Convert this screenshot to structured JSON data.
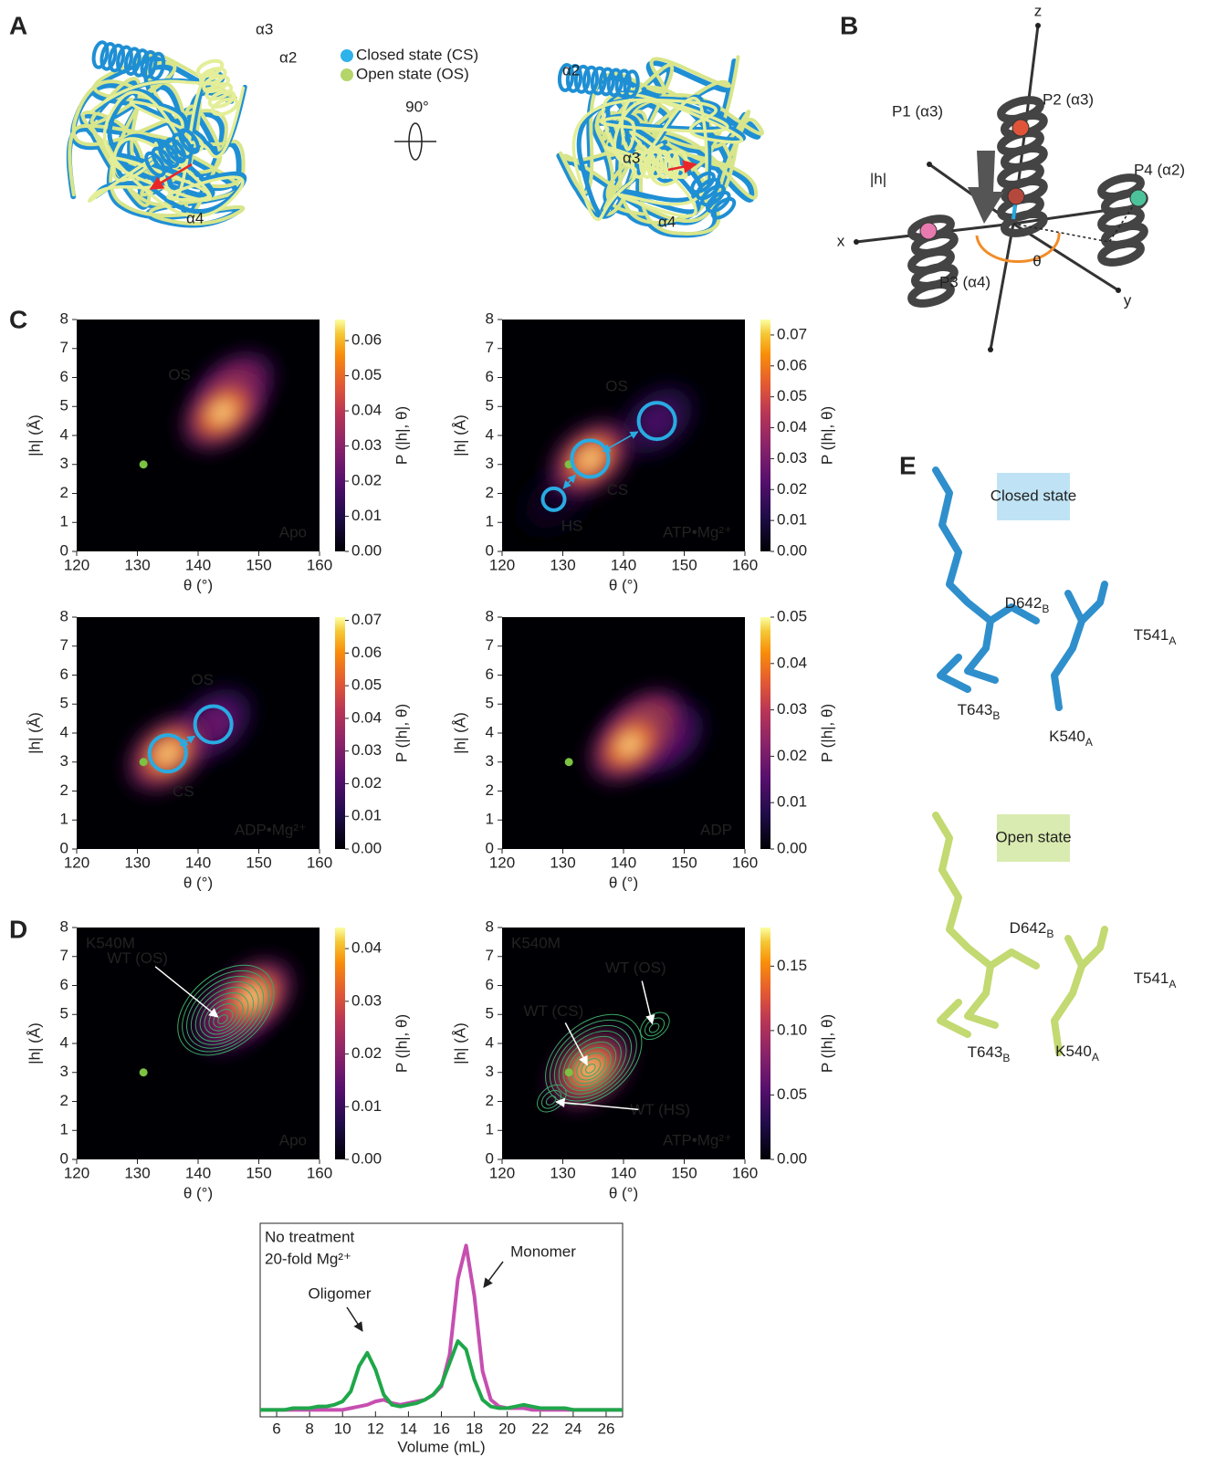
{
  "panel_a": {
    "letter": "A",
    "labels_left": [
      "α3",
      "α2",
      "α4"
    ],
    "legend": [
      "Closed state (CS)",
      "Open state (OS)"
    ],
    "rotation": "90°",
    "labels_right": [
      "α2",
      "α3",
      "α4"
    ]
  },
  "panel_b": {
    "letter": "B",
    "axes": [
      "z",
      "x",
      "y"
    ],
    "points": [
      "P1 (α3)",
      "P2 (α3)",
      "P4 (α2)",
      "P3 (α4)"
    ],
    "vector": "|h|",
    "angle": "θ"
  },
  "panel_c": {
    "letter": "C"
  },
  "panel_d": {
    "letter": "D"
  },
  "panel_e": {
    "letter": "E",
    "closed": {
      "title": "Closed state",
      "residues": [
        {
          "name": "D642",
          "sub": "B"
        },
        {
          "name": "T541",
          "sub": "A"
        },
        {
          "name": "T643",
          "sub": "B"
        },
        {
          "name": "K540",
          "sub": "A"
        }
      ]
    },
    "open": {
      "title": "Open state",
      "residues": [
        {
          "name": "D642",
          "sub": "B"
        },
        {
          "name": "T541",
          "sub": "A"
        },
        {
          "name": "T643",
          "sub": "B"
        },
        {
          "name": "K540",
          "sub": "A"
        }
      ]
    }
  },
  "chart_data": [
    {
      "type": "heatmap",
      "condition": "Apo",
      "xlabel": "θ (°)",
      "ylabel": "|h| (Å)",
      "clabel": "P (|h|, θ)",
      "xlim": [
        120,
        160
      ],
      "xticks": [
        120,
        130,
        140,
        150,
        160
      ],
      "ylim": [
        0,
        8
      ],
      "yticks": [
        0,
        1,
        2,
        3,
        4,
        5,
        6,
        7,
        8
      ],
      "clim": [
        0,
        0.066
      ],
      "cticks": [
        {
          "value": 0,
          "label": "0.00"
        },
        {
          "value": 0.01,
          "label": "0.01"
        },
        {
          "value": 0.02,
          "label": "0.02"
        },
        {
          "value": 0.03,
          "label": "0.03"
        },
        {
          "value": 0.04,
          "label": "0.04"
        },
        {
          "value": 0.05,
          "label": "0.05"
        },
        {
          "value": 0.06,
          "label": "0.06"
        }
      ],
      "peaks": [
        {
          "x": 146,
          "y": 5.6,
          "value": 0.045
        },
        {
          "x": 144,
          "y": 4.8,
          "value": 0.066
        }
      ],
      "reference": {
        "x": 131,
        "y": 3
      },
      "states": [
        {
          "label": "OS",
          "x": 144,
          "y": 4.8
        }
      ],
      "state_circles": false,
      "wt_contours": false
    },
    {
      "type": "heatmap",
      "condition": "ATP•Mg²⁺",
      "xlabel": "θ (°)",
      "ylabel": "|h| (Å)",
      "clabel": "P (|h|, θ)",
      "xlim": [
        120,
        160
      ],
      "xticks": [
        120,
        130,
        140,
        150,
        160
      ],
      "ylim": [
        0,
        8
      ],
      "yticks": [
        0,
        1,
        2,
        3,
        4,
        5,
        6,
        7,
        8
      ],
      "clim": [
        0,
        0.075
      ],
      "cticks": [
        {
          "value": 0,
          "label": "0.00"
        },
        {
          "value": 0.01,
          "label": "0.01"
        },
        {
          "value": 0.02,
          "label": "0.02"
        },
        {
          "value": 0.03,
          "label": "0.03"
        },
        {
          "value": 0.04,
          "label": "0.04"
        },
        {
          "value": 0.05,
          "label": "0.05"
        },
        {
          "value": 0.06,
          "label": "0.06"
        },
        {
          "value": 0.07,
          "label": "0.07"
        }
      ],
      "peaks": [
        {
          "x": 129,
          "y": 1.8,
          "value": 0.006
        },
        {
          "x": 145.5,
          "y": 4.5,
          "value": 0.022
        },
        {
          "x": 134.5,
          "y": 3.2,
          "value": 0.075
        }
      ],
      "reference": {
        "x": 131,
        "y": 3
      },
      "states": [
        {
          "label": "HS",
          "x": 128.5,
          "y": 1.8
        },
        {
          "label": "CS",
          "x": 134.5,
          "y": 3.2
        },
        {
          "label": "OS",
          "x": 145.5,
          "y": 4.5
        }
      ],
      "state_circles": true,
      "wt_contours": false
    },
    {
      "type": "heatmap",
      "condition": "ADP•Mg²⁺",
      "xlabel": "θ (°)",
      "ylabel": "|h| (Å)",
      "clabel": "P (|h|, θ)",
      "xlim": [
        120,
        160
      ],
      "xticks": [
        120,
        130,
        140,
        150,
        160
      ],
      "ylim": [
        0,
        8
      ],
      "yticks": [
        0,
        1,
        2,
        3,
        4,
        5,
        6,
        7,
        8
      ],
      "clim": [
        0,
        0.071
      ],
      "cticks": [
        {
          "value": 0,
          "label": "0.00"
        },
        {
          "value": 0.01,
          "label": "0.01"
        },
        {
          "value": 0.02,
          "label": "0.02"
        },
        {
          "value": 0.03,
          "label": "0.03"
        },
        {
          "value": 0.04,
          "label": "0.04"
        },
        {
          "value": 0.05,
          "label": "0.05"
        },
        {
          "value": 0.06,
          "label": "0.06"
        },
        {
          "value": 0.07,
          "label": "0.07"
        }
      ],
      "peaks": [
        {
          "x": 142.5,
          "y": 4.3,
          "value": 0.03
        },
        {
          "x": 135,
          "y": 3.3,
          "value": 0.071
        }
      ],
      "reference": {
        "x": 131,
        "y": 3
      },
      "states": [
        {
          "label": "CS",
          "x": 135,
          "y": 3.3
        },
        {
          "label": "OS",
          "x": 142.5,
          "y": 4.3
        }
      ],
      "state_circles": true,
      "wt_contours": false
    },
    {
      "type": "heatmap",
      "condition": "ADP",
      "xlabel": "θ (°)",
      "ylabel": "|h| (Å)",
      "clabel": "P (|h|, θ)",
      "xlim": [
        120,
        160
      ],
      "xticks": [
        120,
        130,
        140,
        150,
        160
      ],
      "ylim": [
        0,
        8
      ],
      "yticks": [
        0,
        1,
        2,
        3,
        4,
        5,
        6,
        7,
        8
      ],
      "clim": [
        0,
        0.05
      ],
      "cticks": [
        {
          "value": 0,
          "label": "0.00"
        },
        {
          "value": 0.01,
          "label": "0.01"
        },
        {
          "value": 0.02,
          "label": "0.02"
        },
        {
          "value": 0.03,
          "label": "0.03"
        },
        {
          "value": 0.04,
          "label": "0.04"
        },
        {
          "value": 0.05,
          "label": "0.05"
        }
      ],
      "peaks": [
        {
          "x": 147,
          "y": 3.8,
          "value": 0.02
        },
        {
          "x": 143.5,
          "y": 4.2,
          "value": 0.045
        },
        {
          "x": 141,
          "y": 3.6,
          "value": 0.05
        }
      ],
      "reference": {
        "x": 131,
        "y": 3
      },
      "states": [],
      "state_circles": false,
      "wt_contours": false
    },
    {
      "type": "heatmap",
      "mutant": "K540M",
      "condition": "Apo",
      "xlabel": "θ (°)",
      "ylabel": "|h| (Å)",
      "clabel": "P (|h|, θ)",
      "xlim": [
        120,
        160
      ],
      "xticks": [
        120,
        130,
        140,
        150,
        160
      ],
      "ylim": [
        0,
        8
      ],
      "yticks": [
        0,
        1,
        2,
        3,
        4,
        5,
        6,
        7,
        8
      ],
      "clim": [
        0,
        0.044
      ],
      "cticks": [
        {
          "value": 0,
          "label": "0.00"
        },
        {
          "value": 0.01,
          "label": "0.01"
        },
        {
          "value": 0.02,
          "label": "0.02"
        },
        {
          "value": 0.03,
          "label": "0.03"
        },
        {
          "value": 0.04,
          "label": "0.04"
        }
      ],
      "peaks": [
        {
          "x": 146,
          "y": 5.0,
          "value": 0.03
        },
        {
          "x": 149,
          "y": 5.6,
          "value": 0.044
        }
      ],
      "reference": {
        "x": 131,
        "y": 3
      },
      "states": [
        {
          "label": "WT (OS)",
          "x": 144,
          "y": 4.8
        }
      ],
      "state_circles": false,
      "wt_contours": true
    },
    {
      "type": "heatmap",
      "mutant": "K540M",
      "condition": "ATP•Mg²⁺",
      "xlabel": "θ (°)",
      "ylabel": "|h| (Å)",
      "clabel": "P (|h|, θ)",
      "xlim": [
        120,
        160
      ],
      "xticks": [
        120,
        130,
        140,
        150,
        160
      ],
      "ylim": [
        0,
        8
      ],
      "yticks": [
        0,
        1,
        2,
        3,
        4,
        5,
        6,
        7,
        8
      ],
      "clim": [
        0,
        0.18
      ],
      "cticks": [
        {
          "value": 0,
          "label": "0.00"
        },
        {
          "value": 0.05,
          "label": "0.05"
        },
        {
          "value": 0.1,
          "label": "0.10"
        },
        {
          "value": 0.15,
          "label": "0.15"
        }
      ],
      "peaks": [
        {
          "x": 134.5,
          "y": 3.1,
          "value": 0.18
        }
      ],
      "reference": {
        "x": 131,
        "y": 3
      },
      "states": [
        {
          "label": "WT (CS)",
          "x": 134.5,
          "y": 3.1
        },
        {
          "label": "WT (OS)",
          "x": 145,
          "y": 4.5
        },
        {
          "label": "WT (HS)",
          "x": 128,
          "y": 2.0
        }
      ],
      "state_circles": false,
      "wt_contours": true
    },
    {
      "type": "line",
      "xlabel": "Volume (mL)",
      "xlim": [
        5,
        27
      ],
      "xticks": [
        6,
        8,
        10,
        12,
        14,
        16,
        18,
        20,
        22,
        24,
        26
      ],
      "ylim": [
        0,
        1.1
      ],
      "x": [
        5,
        5.5,
        6,
        6.5,
        7,
        7.5,
        8,
        8.5,
        9,
        9.5,
        10,
        10.5,
        11,
        11.5,
        12,
        12.5,
        13,
        13.5,
        14,
        14.5,
        15,
        15.5,
        16,
        16.5,
        17,
        17.5,
        18,
        18.5,
        19,
        19.5,
        20,
        20.5,
        21,
        21.5,
        22,
        22.5,
        23,
        23.5,
        24,
        24.5,
        25,
        25.5,
        26,
        26.5,
        27
      ],
      "series": [
        {
          "name": "No treatment",
          "color": "#c64fb0",
          "values": [
            0.02,
            0.02,
            0.02,
            0.02,
            0.02,
            0.02,
            0.02,
            0.02,
            0.02,
            0.02,
            0.02,
            0.03,
            0.04,
            0.05,
            0.07,
            0.08,
            0.06,
            0.05,
            0.06,
            0.07,
            0.08,
            0.11,
            0.16,
            0.35,
            0.8,
            1.0,
            0.7,
            0.25,
            0.08,
            0.04,
            0.03,
            0.03,
            0.03,
            0.02,
            0.02,
            0.02,
            0.02,
            0.02,
            0.02,
            0.02,
            0.02,
            0.02,
            0.02,
            0.02,
            0.02
          ]
        },
        {
          "name": "20-fold Mg²⁺",
          "color": "#1fa74a",
          "values": [
            0.02,
            0.02,
            0.02,
            0.02,
            0.03,
            0.03,
            0.03,
            0.04,
            0.04,
            0.05,
            0.07,
            0.13,
            0.28,
            0.36,
            0.26,
            0.11,
            0.05,
            0.04,
            0.05,
            0.06,
            0.08,
            0.11,
            0.17,
            0.3,
            0.43,
            0.38,
            0.2,
            0.08,
            0.04,
            0.03,
            0.03,
            0.04,
            0.05,
            0.04,
            0.03,
            0.03,
            0.03,
            0.03,
            0.02,
            0.02,
            0.02,
            0.02,
            0.02,
            0.02,
            0.02
          ]
        }
      ],
      "annotations": [
        "Oligomer",
        "Monomer"
      ]
    }
  ]
}
